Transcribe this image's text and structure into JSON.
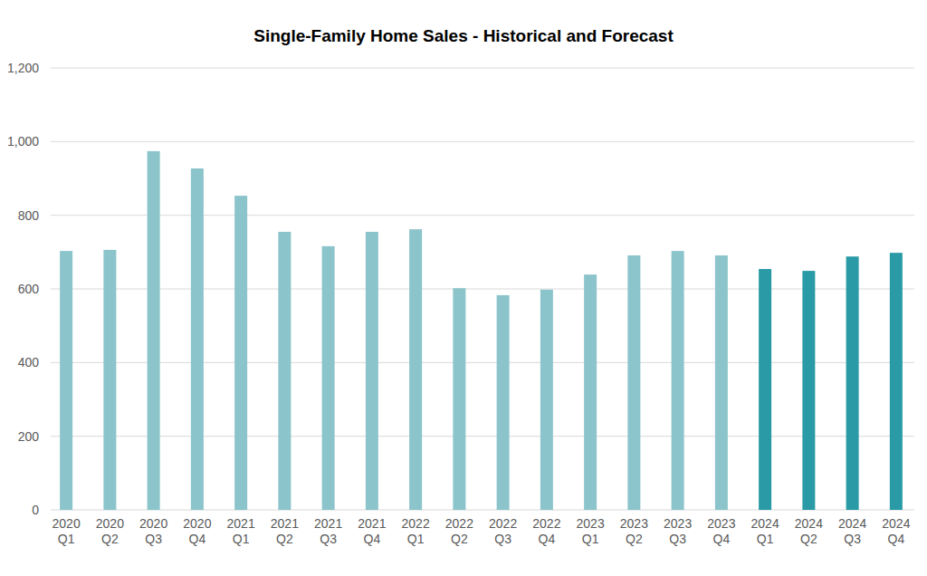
{
  "chart_data": {
    "type": "bar",
    "title": "Single-Family Home Sales - Historical and Forecast",
    "categories": [
      "2020 Q1",
      "2020 Q2",
      "2020 Q3",
      "2020 Q4",
      "2021 Q1",
      "2021 Q2",
      "2021 Q3",
      "2021 Q4",
      "2022 Q1",
      "2022 Q2",
      "2022 Q3",
      "2022 Q4",
      "2023 Q1",
      "2023 Q2",
      "2023 Q3",
      "2023 Q4",
      "2024 Q1",
      "2024 Q2",
      "2024 Q3",
      "2024 Q4"
    ],
    "values": [
      703,
      706,
      974,
      927,
      853,
      755,
      716,
      755,
      762,
      602,
      583,
      598,
      639,
      691,
      703,
      691,
      654,
      649,
      688,
      698
    ],
    "colors": [
      "#8bc4cb",
      "#8bc4cb",
      "#8bc4cb",
      "#8bc4cb",
      "#8bc4cb",
      "#8bc4cb",
      "#8bc4cb",
      "#8bc4cb",
      "#8bc4cb",
      "#8bc4cb",
      "#8bc4cb",
      "#8bc4cb",
      "#8bc4cb",
      "#8bc4cb",
      "#8bc4cb",
      "#8bc4cb",
      "#2a9ba6",
      "#2a9ba6",
      "#2a9ba6",
      "#2a9ba6"
    ],
    "ylim": [
      0,
      1200
    ],
    "yticks": [
      0,
      200,
      400,
      600,
      800,
      {
        "value": 1000,
        "label": "1,000"
      },
      {
        "value": 1200,
        "label": "1,200"
      }
    ],
    "grid": true
  }
}
